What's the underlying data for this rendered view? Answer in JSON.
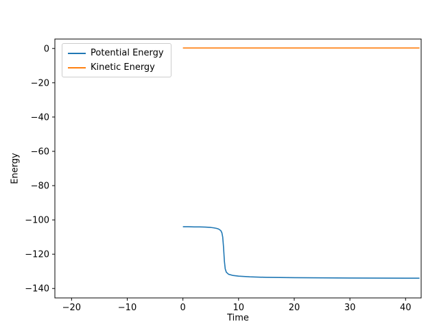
{
  "chart_data": {
    "type": "line",
    "title": "",
    "xlabel": "Time",
    "ylabel": "Energy",
    "xlim": [
      -23,
      42.8
    ],
    "ylim": [
      -145.5,
      5.5
    ],
    "grid": false,
    "legend_position": "upper left",
    "xticks": [
      {
        "value": -20,
        "label": "−20"
      },
      {
        "value": -10,
        "label": "−10"
      },
      {
        "value": 0,
        "label": "0"
      },
      {
        "value": 10,
        "label": "10"
      },
      {
        "value": 20,
        "label": "20"
      },
      {
        "value": 30,
        "label": "30"
      },
      {
        "value": 40,
        "label": "40"
      }
    ],
    "yticks": [
      {
        "value": 0,
        "label": "0"
      },
      {
        "value": -20,
        "label": "−20"
      },
      {
        "value": -40,
        "label": "−40"
      },
      {
        "value": -60,
        "label": "−60"
      },
      {
        "value": -80,
        "label": "−80"
      },
      {
        "value": -100,
        "label": "−100"
      },
      {
        "value": -120,
        "label": "−120"
      },
      {
        "value": -140,
        "label": "−140"
      }
    ],
    "series": [
      {
        "name": "Potential Energy",
        "color": "#1f77b4",
        "x": [
          0,
          1,
          2,
          3,
          4,
          5,
          5.5,
          6,
          6.4,
          6.8,
          7.0,
          7.15,
          7.3,
          7.45,
          7.6,
          7.8,
          8.2,
          9,
          10,
          12,
          15,
          20,
          25,
          30,
          35,
          40,
          42.5
        ],
        "y": [
          -104,
          -104,
          -104.1,
          -104.1,
          -104.2,
          -104.4,
          -104.6,
          -104.9,
          -105.3,
          -106.2,
          -107.5,
          -110,
          -116,
          -124,
          -128.5,
          -130.5,
          -131.7,
          -132.4,
          -132.8,
          -133.2,
          -133.5,
          -133.7,
          -133.8,
          -133.9,
          -133.95,
          -134,
          -134
        ]
      },
      {
        "name": "Kinetic Energy",
        "color": "#ff7f0e",
        "x": [
          0,
          42.5
        ],
        "y": [
          0.3,
          0.3
        ]
      }
    ]
  }
}
